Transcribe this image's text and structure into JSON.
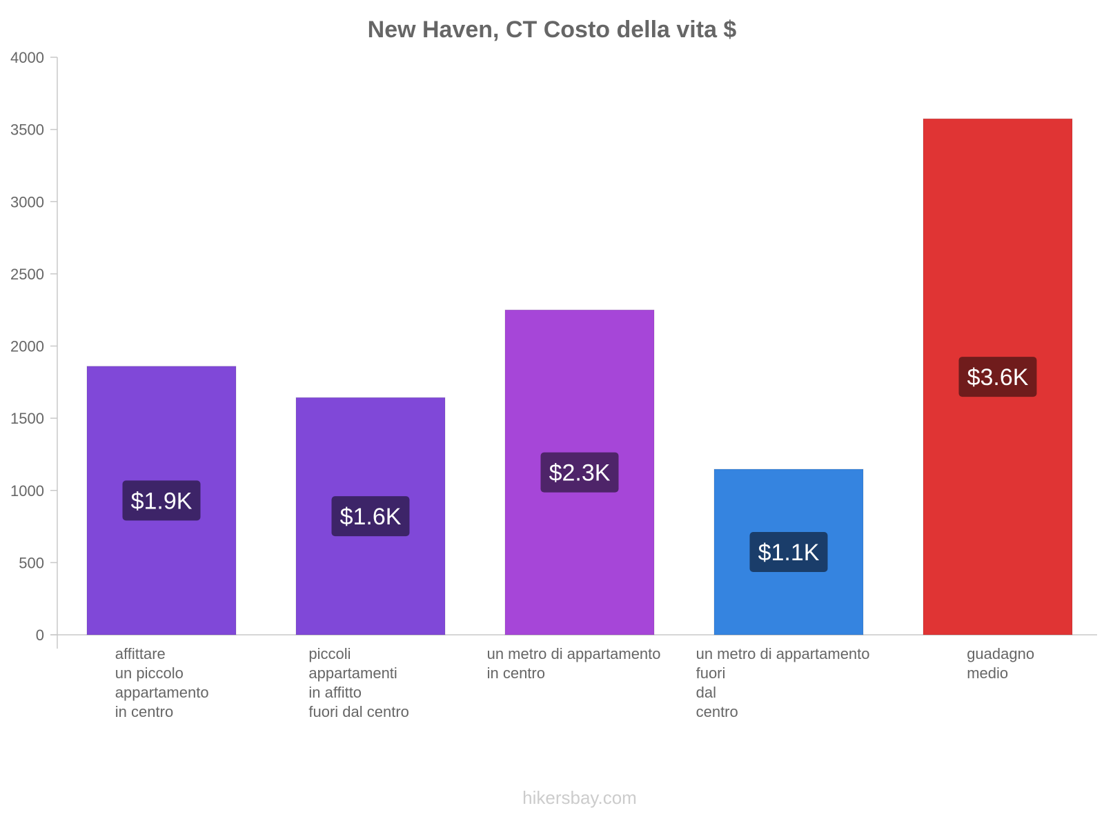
{
  "footer": "hikersbay.com",
  "chart_data": {
    "type": "bar",
    "title": "New Haven, CT Costo della vita $",
    "xlabel": "",
    "ylabel": "",
    "ylim": [
      0,
      4000
    ],
    "yticks": [
      0,
      500,
      1000,
      1500,
      2000,
      2500,
      3000,
      3500,
      4000
    ],
    "categories": [
      [
        "affittare",
        "un piccolo",
        "appartamento",
        "in centro"
      ],
      [
        "piccoli",
        "appartamenti",
        "in affitto",
        "fuori dal centro"
      ],
      [
        "un metro di appartamento",
        "in centro"
      ],
      [
        "un metro di appartamento",
        "fuori",
        "dal",
        "centro"
      ],
      [
        "guadagno",
        "medio"
      ]
    ],
    "values": [
      1860,
      1643,
      2250,
      1147,
      3574
    ],
    "labels": [
      "$1.9K",
      "$1.6K",
      "$2.3K",
      "$1.1K",
      "$3.6K"
    ],
    "colors": [
      "#8048d8",
      "#8048d8",
      "#a646d8",
      "#3584e0",
      "#e03434"
    ],
    "label_bg": [
      "#3d2468",
      "#3d2468",
      "#4e2469",
      "#1a3d6a",
      "#701c1c"
    ]
  }
}
